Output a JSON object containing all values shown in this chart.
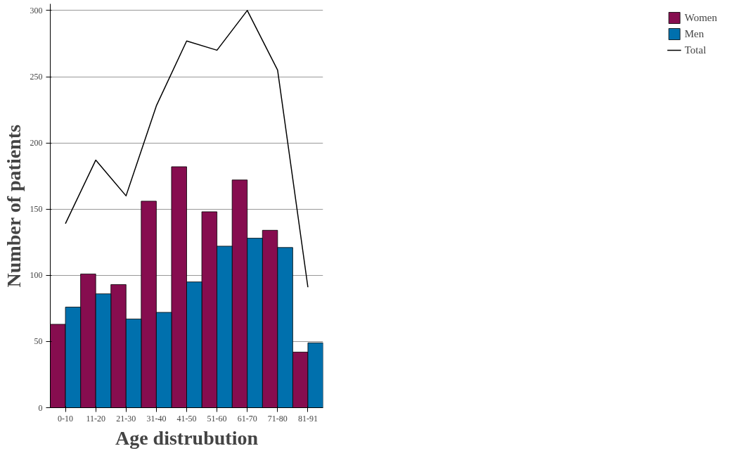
{
  "chart_data": {
    "type": "bar",
    "xlabel": "Age distrubution",
    "ylabel": "Number of patients",
    "categories": [
      "0-10",
      "11-20",
      "21-30",
      "31-40",
      "41-50",
      "51-60",
      "61-70",
      "71-80",
      "81-91"
    ],
    "series": [
      {
        "name": "Women",
        "color": "#860d4f",
        "values": [
          63,
          101,
          93,
          156,
          182,
          148,
          172,
          134,
          42
        ]
      },
      {
        "name": "Men",
        "color": "#0070ad",
        "values": [
          76,
          86,
          67,
          72,
          95,
          122,
          128,
          121,
          49
        ]
      },
      {
        "name": "Total",
        "type": "line",
        "color": "#000000",
        "values": [
          139,
          187,
          160,
          228,
          277,
          270,
          300,
          255,
          91
        ]
      }
    ],
    "ylim": [
      0,
      305
    ],
    "yticks": [
      0,
      50,
      100,
      150,
      200,
      250,
      300
    ],
    "grid": "y",
    "legend": "right"
  }
}
